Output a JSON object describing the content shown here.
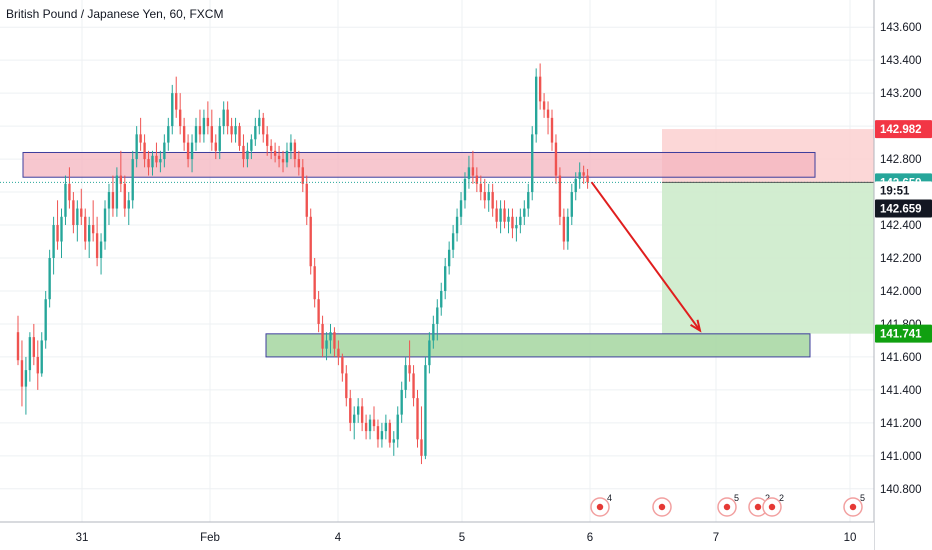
{
  "chart_data": {
    "type": "candlestick",
    "title": "British Pound / Japanese Yen, 60, FXCM",
    "x_tick_labels": [
      "31",
      "Feb",
      "4",
      "5",
      "6",
      "7",
      "10"
    ],
    "y_tick_labels": [
      "143.600",
      "143.400",
      "143.200",
      "143.000",
      "142.800",
      "142.600",
      "142.400",
      "142.200",
      "142.000",
      "141.800",
      "141.600",
      "141.400",
      "141.200",
      "141.000",
      "140.800"
    ],
    "ylim": [
      140.72,
      143.68
    ],
    "grid": true,
    "price_badges": [
      {
        "label": "142.982",
        "value": 142.982,
        "color": "#f23645"
      },
      {
        "label": "142.659",
        "value": 142.659,
        "color": "#26a69a"
      },
      {
        "label": "19:51",
        "value": 142.61,
        "color": "#ffffff"
      },
      {
        "label": "142.659",
        "value": 142.5,
        "color": "#131722"
      },
      {
        "label": "141.741",
        "value": 141.741,
        "color": "#10a010"
      }
    ],
    "zones": [
      {
        "kind": "resistance",
        "from": 142.69,
        "to": 142.84,
        "color": "#f4b4bf"
      },
      {
        "kind": "support",
        "from": 141.6,
        "to": 141.74,
        "color": "#a5d6a0"
      }
    ],
    "position": {
      "entry": 142.659,
      "stop": 142.982,
      "target": 141.741
    },
    "arrow": {
      "from": 142.66,
      "to": 141.76,
      "color": "#e01e1e"
    },
    "event_markers": [
      {
        "x": 7.13,
        "label": "4"
      },
      {
        "x": 7.72,
        "label": ""
      },
      {
        "x": 8.2,
        "label": "5"
      },
      {
        "x": 8.63,
        "label": "2"
      },
      {
        "x": 8.78,
        "label": "2"
      },
      {
        "x": 10.07,
        "label": "5"
      }
    ],
    "candles": [
      [
        141.75,
        141.85,
        141.55,
        141.58
      ],
      [
        141.58,
        141.7,
        141.3,
        141.42
      ],
      [
        141.42,
        141.6,
        141.25,
        141.52
      ],
      [
        141.52,
        141.75,
        141.45,
        141.72
      ],
      [
        141.72,
        141.8,
        141.55,
        141.6
      ],
      [
        141.6,
        141.7,
        141.4,
        141.5
      ],
      [
        141.5,
        141.75,
        141.48,
        141.7
      ],
      [
        141.7,
        142.0,
        141.65,
        141.95
      ],
      [
        141.95,
        142.25,
        141.9,
        142.2
      ],
      [
        142.2,
        142.45,
        142.1,
        142.4
      ],
      [
        142.4,
        142.55,
        142.25,
        142.3
      ],
      [
        142.3,
        142.5,
        142.2,
        142.45
      ],
      [
        142.45,
        142.7,
        142.4,
        142.65
      ],
      [
        142.65,
        142.75,
        142.5,
        142.55
      ],
      [
        142.55,
        142.6,
        142.35,
        142.4
      ],
      [
        142.4,
        142.55,
        142.3,
        142.5
      ],
      [
        142.5,
        142.62,
        142.4,
        142.45
      ],
      [
        142.45,
        142.5,
        142.25,
        142.3
      ],
      [
        142.3,
        142.45,
        142.2,
        142.4
      ],
      [
        142.4,
        142.55,
        142.3,
        142.35
      ],
      [
        142.35,
        142.45,
        142.15,
        142.2
      ],
      [
        142.2,
        142.35,
        142.1,
        142.3
      ],
      [
        142.3,
        142.55,
        142.25,
        142.5
      ],
      [
        142.5,
        142.65,
        142.4,
        142.6
      ],
      [
        142.6,
        142.7,
        142.45,
        142.5
      ],
      [
        142.5,
        142.75,
        142.45,
        142.7
      ],
      [
        142.7,
        142.85,
        142.6,
        142.65
      ],
      [
        142.65,
        142.7,
        142.45,
        142.5
      ],
      [
        142.5,
        142.6,
        142.4,
        142.55
      ],
      [
        142.55,
        142.85,
        142.5,
        142.8
      ],
      [
        142.8,
        143.0,
        142.75,
        142.95
      ],
      [
        142.95,
        143.05,
        142.85,
        142.9
      ],
      [
        142.9,
        142.95,
        142.75,
        142.8
      ],
      [
        142.8,
        142.85,
        142.7,
        142.75
      ],
      [
        142.75,
        142.85,
        142.7,
        142.82
      ],
      [
        142.82,
        142.9,
        142.75,
        142.78
      ],
      [
        142.78,
        142.85,
        142.72,
        142.8
      ],
      [
        142.8,
        142.95,
        142.75,
        142.9
      ],
      [
        142.9,
        143.05,
        142.85,
        143.0
      ],
      [
        143.0,
        143.25,
        142.95,
        143.2
      ],
      [
        143.2,
        143.3,
        143.05,
        143.1
      ],
      [
        143.1,
        143.2,
        142.95,
        143.0
      ],
      [
        143.0,
        143.05,
        142.85,
        142.9
      ],
      [
        142.9,
        142.95,
        142.75,
        142.8
      ],
      [
        142.8,
        142.95,
        142.72,
        142.9
      ],
      [
        142.9,
        143.05,
        142.85,
        143.0
      ],
      [
        143.0,
        143.1,
        142.9,
        142.95
      ],
      [
        142.95,
        143.1,
        142.9,
        143.05
      ],
      [
        143.05,
        143.15,
        142.95,
        143.0
      ],
      [
        143.0,
        143.1,
        142.85,
        142.9
      ],
      [
        142.9,
        142.95,
        142.8,
        142.85
      ],
      [
        142.85,
        143.05,
        142.8,
        143.0
      ],
      [
        143.0,
        143.15,
        142.95,
        143.1
      ],
      [
        143.1,
        143.15,
        142.95,
        143.0
      ],
      [
        143.0,
        143.05,
        142.9,
        142.95
      ],
      [
        142.95,
        143.05,
        142.9,
        143.0
      ],
      [
        143.0,
        143.02,
        142.85,
        142.88
      ],
      [
        142.88,
        142.95,
        142.75,
        142.8
      ],
      [
        142.8,
        142.9,
        142.75,
        142.85
      ],
      [
        142.85,
        142.95,
        142.8,
        142.92
      ],
      [
        142.92,
        143.05,
        142.88,
        143.0
      ],
      [
        143.0,
        143.1,
        142.95,
        143.05
      ],
      [
        143.05,
        143.08,
        142.9,
        142.95
      ],
      [
        142.95,
        143.0,
        142.82,
        142.88
      ],
      [
        142.88,
        142.92,
        142.8,
        142.85
      ],
      [
        142.85,
        142.9,
        142.78,
        142.82
      ],
      [
        142.82,
        142.88,
        142.75,
        142.8
      ],
      [
        142.8,
        142.85,
        142.72,
        142.78
      ],
      [
        142.78,
        142.9,
        142.75,
        142.85
      ],
      [
        142.85,
        142.95,
        142.8,
        142.9
      ],
      [
        142.9,
        142.92,
        142.75,
        142.8
      ],
      [
        142.8,
        142.85,
        142.7,
        142.75
      ],
      [
        142.75,
        142.8,
        142.6,
        142.65
      ],
      [
        142.65,
        142.7,
        142.4,
        142.45
      ],
      [
        142.45,
        142.5,
        142.1,
        142.15
      ],
      [
        142.15,
        142.2,
        141.9,
        141.95
      ],
      [
        141.95,
        142.0,
        141.75,
        141.8
      ],
      [
        141.8,
        141.85,
        141.6,
        141.65
      ],
      [
        141.65,
        141.75,
        141.58,
        141.7
      ],
      [
        141.7,
        141.8,
        141.62,
        141.75
      ],
      [
        141.75,
        141.78,
        141.6,
        141.65
      ],
      [
        141.65,
        141.7,
        141.55,
        141.6
      ],
      [
        141.6,
        141.62,
        141.45,
        141.5
      ],
      [
        141.5,
        141.55,
        141.3,
        141.35
      ],
      [
        141.35,
        141.4,
        141.15,
        141.2
      ],
      [
        141.2,
        141.3,
        141.1,
        141.25
      ],
      [
        141.25,
        141.35,
        141.2,
        141.3
      ],
      [
        141.3,
        141.35,
        141.15,
        141.2
      ],
      [
        141.2,
        141.25,
        141.1,
        141.15
      ],
      [
        141.15,
        141.25,
        141.1,
        141.22
      ],
      [
        141.22,
        141.3,
        141.15,
        141.18
      ],
      [
        141.18,
        141.22,
        141.05,
        141.1
      ],
      [
        141.1,
        141.2,
        141.05,
        141.15
      ],
      [
        141.15,
        141.25,
        141.1,
        141.2
      ],
      [
        141.2,
        141.22,
        141.05,
        141.08
      ],
      [
        141.08,
        141.15,
        141.0,
        141.1
      ],
      [
        141.1,
        141.3,
        141.05,
        141.25
      ],
      [
        141.25,
        141.45,
        141.2,
        141.4
      ],
      [
        141.4,
        141.6,
        141.35,
        141.55
      ],
      [
        141.55,
        141.7,
        141.45,
        141.5
      ],
      [
        141.5,
        141.55,
        141.3,
        141.35
      ],
      [
        141.35,
        141.4,
        141.05,
        141.1
      ],
      [
        141.1,
        141.3,
        140.95,
        141.0
      ],
      [
        141.0,
        141.6,
        140.98,
        141.55
      ],
      [
        141.55,
        141.75,
        141.5,
        141.7
      ],
      [
        141.7,
        141.85,
        141.65,
        141.8
      ],
      [
        141.8,
        141.95,
        141.7,
        141.9
      ],
      [
        141.9,
        142.05,
        141.85,
        142.0
      ],
      [
        142.0,
        142.2,
        141.95,
        142.15
      ],
      [
        142.15,
        142.3,
        142.1,
        142.25
      ],
      [
        142.25,
        142.4,
        142.2,
        142.35
      ],
      [
        142.35,
        142.5,
        142.3,
        142.45
      ],
      [
        142.45,
        142.6,
        142.4,
        142.55
      ],
      [
        142.55,
        142.72,
        142.5,
        142.68
      ],
      [
        142.68,
        142.82,
        142.62,
        142.75
      ],
      [
        142.75,
        142.85,
        142.65,
        142.7
      ],
      [
        142.7,
        142.75,
        142.6,
        142.65
      ],
      [
        142.65,
        142.7,
        142.55,
        142.6
      ],
      [
        142.6,
        142.68,
        142.5,
        142.55
      ],
      [
        142.55,
        142.65,
        142.48,
        142.6
      ],
      [
        142.6,
        142.65,
        142.45,
        142.5
      ],
      [
        142.5,
        142.55,
        142.38,
        142.42
      ],
      [
        142.42,
        142.55,
        142.35,
        142.5
      ],
      [
        142.5,
        142.55,
        142.38,
        142.42
      ],
      [
        142.42,
        142.5,
        142.35,
        142.45
      ],
      [
        142.45,
        142.5,
        142.32,
        142.38
      ],
      [
        142.38,
        142.45,
        142.3,
        142.4
      ],
      [
        142.4,
        142.5,
        142.35,
        142.45
      ],
      [
        142.45,
        142.55,
        142.4,
        142.5
      ],
      [
        142.5,
        142.65,
        142.45,
        142.6
      ],
      [
        142.6,
        143.0,
        142.55,
        142.95
      ],
      [
        142.95,
        143.35,
        142.9,
        143.3
      ],
      [
        143.3,
        143.38,
        143.1,
        143.15
      ],
      [
        143.15,
        143.2,
        143.05,
        143.1
      ],
      [
        143.1,
        143.15,
        142.95,
        143.05
      ],
      [
        143.05,
        143.1,
        142.85,
        142.9
      ],
      [
        142.9,
        142.95,
        142.65,
        142.7
      ],
      [
        142.7,
        142.75,
        142.4,
        142.45
      ],
      [
        142.45,
        142.5,
        142.25,
        142.3
      ],
      [
        142.3,
        142.5,
        142.25,
        142.45
      ],
      [
        142.45,
        142.65,
        142.4,
        142.6
      ],
      [
        142.6,
        142.72,
        142.55,
        142.68
      ],
      [
        142.68,
        142.78,
        142.62,
        142.72
      ],
      [
        142.72,
        142.76,
        142.65,
        142.7
      ],
      [
        142.7,
        142.74,
        142.62,
        142.66
      ]
    ]
  }
}
